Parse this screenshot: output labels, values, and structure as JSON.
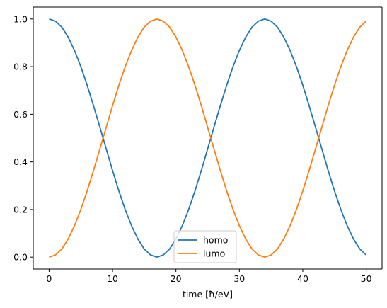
{
  "chart_data": {
    "type": "line",
    "title": "",
    "xlabel": "time [ħ/eV]",
    "ylabel": "",
    "xlim": [
      -2.5,
      52.5
    ],
    "ylim": [
      -0.05,
      1.05
    ],
    "xticks": [
      0,
      10,
      20,
      30,
      40,
      50
    ],
    "yticks": [
      0.0,
      0.2,
      0.4,
      0.6,
      0.8,
      1.0
    ],
    "ytick_labels": [
      "0.0",
      "0.2",
      "0.4",
      "0.6",
      "0.8",
      "1.0"
    ],
    "grid": false,
    "legend_position": "bottom-center",
    "x": [
      0,
      1,
      2,
      3,
      4,
      5,
      6,
      7,
      8,
      9,
      10,
      11,
      12,
      13,
      14,
      15,
      16,
      17,
      18,
      19,
      20,
      21,
      22,
      23,
      24,
      25,
      26,
      27,
      28,
      29,
      30,
      31,
      32,
      33,
      34,
      35,
      36,
      37,
      38,
      39,
      40,
      41,
      42,
      43,
      44,
      45,
      46,
      47,
      48,
      49,
      50
    ],
    "series": [
      {
        "name": "homo",
        "color": "#1f77b4",
        "values": [
          1.0,
          0.991,
          0.966,
          0.924,
          0.868,
          0.8,
          0.722,
          0.636,
          0.546,
          0.455,
          0.364,
          0.278,
          0.2,
          0.132,
          0.076,
          0.034,
          0.009,
          0.0,
          0.009,
          0.034,
          0.076,
          0.132,
          0.2,
          0.278,
          0.364,
          0.455,
          0.546,
          0.636,
          0.722,
          0.8,
          0.868,
          0.924,
          0.966,
          0.991,
          1.0,
          0.991,
          0.966,
          0.924,
          0.868,
          0.8,
          0.722,
          0.636,
          0.546,
          0.455,
          0.364,
          0.278,
          0.2,
          0.132,
          0.076,
          0.034,
          0.009
        ]
      },
      {
        "name": "lumo",
        "color": "#ff7f0e",
        "values": [
          0.0,
          0.009,
          0.034,
          0.076,
          0.132,
          0.2,
          0.278,
          0.364,
          0.454,
          0.545,
          0.636,
          0.722,
          0.8,
          0.868,
          0.924,
          0.966,
          0.991,
          1.0,
          0.991,
          0.966,
          0.924,
          0.868,
          0.8,
          0.722,
          0.636,
          0.545,
          0.454,
          0.364,
          0.278,
          0.2,
          0.132,
          0.076,
          0.034,
          0.009,
          0.0,
          0.009,
          0.034,
          0.076,
          0.132,
          0.2,
          0.278,
          0.364,
          0.454,
          0.545,
          0.636,
          0.722,
          0.8,
          0.868,
          0.924,
          0.966,
          0.991
        ]
      }
    ]
  }
}
